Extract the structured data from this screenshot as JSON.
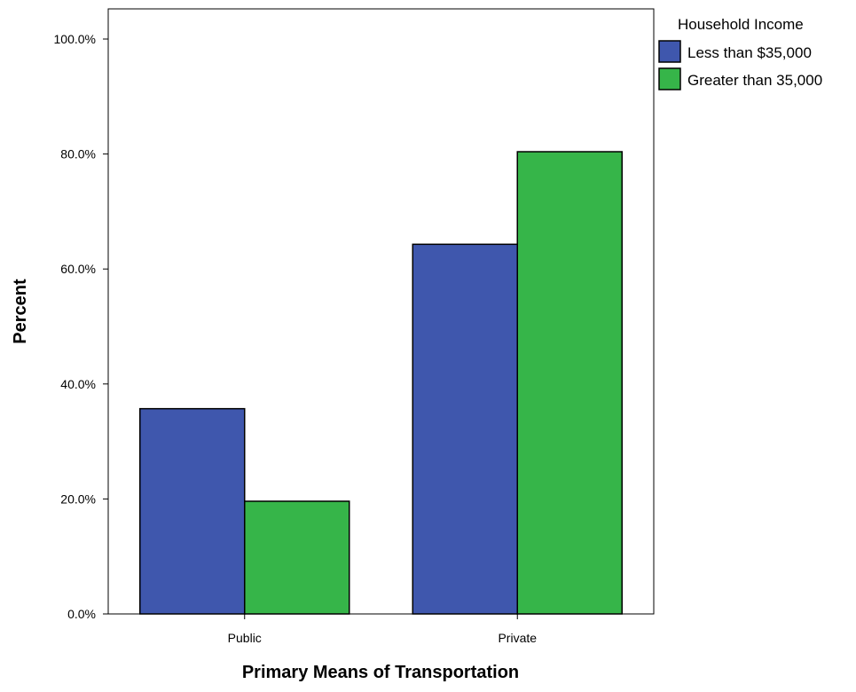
{
  "chart_data": {
    "type": "bar",
    "categories": [
      "Public",
      "Private"
    ],
    "series": [
      {
        "name": "Less than $35,000",
        "values": [
          35.7,
          64.3
        ],
        "color": "#3f57ad"
      },
      {
        "name": "Greater than 35,000",
        "values": [
          19.6,
          80.4
        ],
        "color": "#36b549"
      }
    ],
    "xlabel": "Primary Means of Transportation",
    "ylabel": "Percent",
    "ylim": [
      0,
      100
    ],
    "yticks": [
      "0.0%",
      "20.0%",
      "40.0%",
      "60.0%",
      "80.0%",
      "100.0%"
    ],
    "ytick_values": [
      0,
      20,
      40,
      60,
      80,
      100
    ],
    "legend": {
      "title": "Household Income",
      "placement": "right"
    },
    "grid": false
  }
}
